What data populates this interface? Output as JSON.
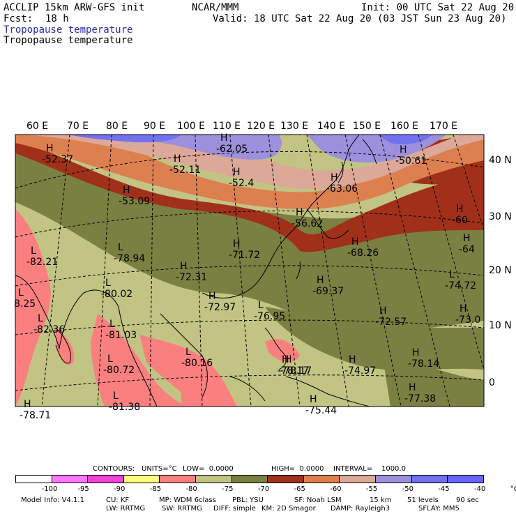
{
  "header": {
    "title_left": "ACCLIP 15km ARW-GFS init",
    "fcst_label": "Fcst:",
    "fcst_value": "18 h",
    "center": "NCAR/MMM",
    "init": "Init: 00 UTC Sat 22 Aug 20",
    "valid": "Valid: 18 UTC Sat 22 Aug 20 (03 JST Sun 23 Aug 20)",
    "field_blue": "Tropopause temperature",
    "field_black": "Tropopause temperature"
  },
  "map": {
    "lon_labels": [
      "60 E",
      "70 E",
      "80 E",
      "90 E",
      "100 E",
      "110 E",
      "120 E",
      "130 E",
      "140 E",
      "150 E",
      "160 E",
      "170 E"
    ],
    "lat_labels": [
      "40 N",
      "30 N",
      "20 N",
      "10 N",
      "0"
    ],
    "markers": [
      {
        "type": "H",
        "value": "-52.37"
      },
      {
        "type": "H",
        "value": "-52.11"
      },
      {
        "type": "H",
        "value": "-62.05"
      },
      {
        "type": "H",
        "value": "-52.4"
      },
      {
        "type": "H",
        "value": "-53.09"
      },
      {
        "type": "H",
        "value": "-63.06"
      },
      {
        "type": "H",
        "value": "-50.61"
      },
      {
        "type": "H",
        "value": "-56.62"
      },
      {
        "type": "H",
        "value": "-60"
      },
      {
        "type": "H",
        "value": "-64"
      },
      {
        "type": "L",
        "value": "-82.21"
      },
      {
        "type": "L",
        "value": "-78.94"
      },
      {
        "type": "H",
        "value": "-71.72"
      },
      {
        "type": "H",
        "value": "-68.26"
      },
      {
        "type": "H",
        "value": "-72.31"
      },
      {
        "type": "H",
        "value": "-69.37"
      },
      {
        "type": "L",
        "value": "-74.72"
      },
      {
        "type": "L",
        "value": "-80.02"
      },
      {
        "type": "H",
        "value": "-72.97"
      },
      {
        "type": "L",
        "value": "-76.95"
      },
      {
        "type": "H",
        "value": "-72.57"
      },
      {
        "type": "H",
        "value": "-73.0"
      },
      {
        "type": "L",
        "value": "-82.36"
      },
      {
        "type": "L",
        "value": "-81.03"
      },
      {
        "type": "L",
        "value": "-80.72"
      },
      {
        "type": "L",
        "value": "-80.16"
      },
      {
        "type": "H",
        "value": "-78.17"
      },
      {
        "type": "H",
        "value": "-78.17"
      },
      {
        "type": "H",
        "value": "-74.97"
      },
      {
        "type": "H",
        "value": "-78.14"
      },
      {
        "type": "L",
        "value": "-81.38"
      },
      {
        "type": "H",
        "value": "-75.44"
      },
      {
        "type": "H",
        "value": "-77.38"
      },
      {
        "type": "H",
        "value": "-78.71"
      },
      {
        "type": "L",
        "value": "8.25"
      }
    ]
  },
  "contours": {
    "label": "CONTOURS:",
    "units": "UNITS=°C",
    "low": "LOW=  0.0000",
    "high": "HIGH=  0.0000",
    "interval": "INTERVAL=    1000.0"
  },
  "legend": {
    "colors": [
      "#ffffff",
      "#ff78ff",
      "#ee44d8",
      "#ffff80",
      "#fa8080",
      "#c2c484",
      "#7a8042",
      "#a0301a",
      "#dd8050",
      "#dca898",
      "#9c90dc",
      "#7272f0",
      "#6666ff"
    ],
    "labels": [
      "-100",
      "-95",
      "-90",
      "-85",
      "-80",
      "-75",
      "-70",
      "-65",
      "-60",
      "-55",
      "-50",
      "-45",
      "-40",
      "°C"
    ]
  },
  "footer": {
    "line1": [
      "Model Info: V4.1.1",
      "CU: KF",
      "MP: WDM 6class",
      "PBL: YSU",
      "SF: Noah LSM",
      "15 km",
      "51 levels",
      "90 sec"
    ],
    "line2": [
      "LW: RRTMG",
      "SW: RRTMG",
      "DIFF: simple",
      "KM: 2D Smagor",
      "DAMP: Rayleigh3",
      "SFLAY: MM5"
    ]
  }
}
